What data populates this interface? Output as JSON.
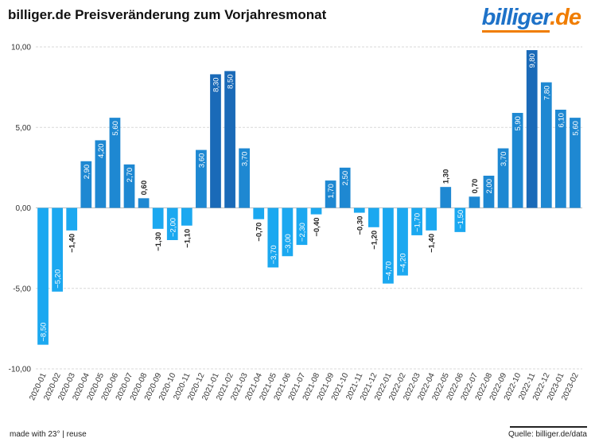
{
  "title": "billiger.de Preisveränderung zum Vorjahresmonat",
  "logo": {
    "name": "billiger",
    "tld": ".de"
  },
  "footer": {
    "left": "made with 23° | reuse",
    "right": "Quelle: billiger.de/data"
  },
  "colors": {
    "light": "#1ba8f0",
    "mid": "#1e88d2",
    "dark": "#1a6ab8",
    "grid": "#d9d9d9"
  },
  "chart_data": {
    "type": "bar",
    "ylim": [
      -10,
      10
    ],
    "yticks": [
      {
        "v": 10,
        "label": "10,00"
      },
      {
        "v": 5,
        "label": "5,00"
      },
      {
        "v": 0,
        "label": "0,00"
      },
      {
        "v": -5,
        "label": "-5,00"
      },
      {
        "v": -10,
        "label": "-10,00"
      }
    ],
    "categories": [
      "2020-01",
      "2020-02",
      "2020-03",
      "2020-04",
      "2020-05",
      "2020-06",
      "2020-07",
      "2020-08",
      "2020-09",
      "2020-10",
      "2020-11",
      "2020-12",
      "2021-01",
      "2021-02",
      "2021-03",
      "2021-04",
      "2021-05",
      "2021-06",
      "2021-07",
      "2021-08",
      "2021-09",
      "2021-10",
      "2021-11",
      "2021-12",
      "2022-01",
      "2022-02",
      "2022-03",
      "2022-04",
      "2022-05",
      "2022-06",
      "2022-07",
      "2022-08",
      "2022-09",
      "2022-10",
      "2022-11",
      "2022-12",
      "2023-01",
      "2023-02"
    ],
    "values": [
      -8.5,
      -5.2,
      -1.4,
      2.9,
      4.2,
      5.6,
      2.7,
      0.6,
      -1.3,
      -2.0,
      -1.1,
      3.6,
      8.3,
      8.5,
      3.7,
      -0.7,
      -3.7,
      -3.0,
      -2.3,
      -0.4,
      1.7,
      2.5,
      -0.3,
      -1.2,
      -4.7,
      -4.2,
      -1.7,
      -1.4,
      1.3,
      -1.5,
      0.7,
      2.0,
      3.7,
      5.9,
      9.8,
      7.8,
      6.1,
      5.6
    ],
    "labels": [
      "−8,50",
      "−5,20",
      "−1,40",
      "2,90",
      "4,20",
      "5,60",
      "2,70",
      "0,60",
      "−1,30",
      "−2,00",
      "−1,10",
      "3,60",
      "8,30",
      "8,50",
      "3,70",
      "−0,70",
      "−3,70",
      "−3,00",
      "−2,30",
      "−0,40",
      "1,70",
      "2,50",
      "−0,30",
      "−1,20",
      "−4,70",
      "−4,20",
      "−1,70",
      "−1,40",
      "1,30",
      "−1,50",
      "0,70",
      "2,00",
      "3,70",
      "5,90",
      "9,80",
      "7,80",
      "6,10",
      "5,60"
    ]
  }
}
